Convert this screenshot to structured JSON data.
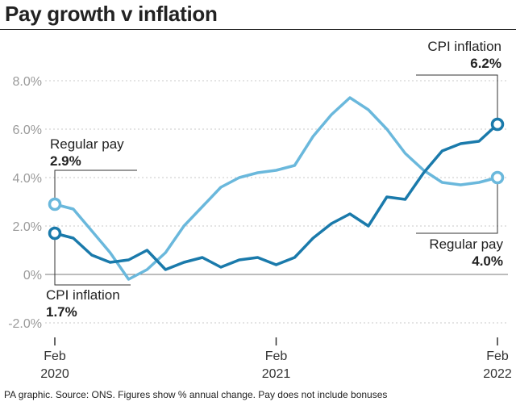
{
  "title": "Pay growth v inflation",
  "source": "PA graphic. Source: ONS. Figures show % annual change. Pay does not include bonuses",
  "chart_data": {
    "type": "line",
    "ylim": [
      -2,
      8
    ],
    "yticks": [
      -2,
      0,
      2,
      4,
      6,
      8
    ],
    "ytick_labels": [
      "-2.0%",
      "0%",
      "2.0%",
      "4.0%",
      "6.0%",
      "8.0%"
    ],
    "x_months": 24,
    "xticks": [
      {
        "index": 0,
        "line1": "Feb",
        "line2": "2020"
      },
      {
        "index": 12,
        "line1": "Feb",
        "line2": "2021"
      },
      {
        "index": 24,
        "line1": "Feb",
        "line2": "2022"
      }
    ],
    "series": [
      {
        "name": "CPI inflation",
        "color": "#1a7aab",
        "values": [
          1.7,
          1.5,
          0.8,
          0.5,
          0.6,
          1.0,
          0.2,
          0.5,
          0.7,
          0.3,
          0.6,
          0.7,
          0.4,
          0.7,
          1.5,
          2.1,
          2.5,
          2.0,
          3.2,
          3.1,
          4.2,
          5.1,
          5.4,
          5.5,
          6.2
        ]
      },
      {
        "name": "Regular pay",
        "color": "#6ab8dc",
        "values": [
          2.9,
          2.7,
          1.8,
          0.9,
          -0.2,
          0.2,
          0.9,
          2.0,
          2.8,
          3.6,
          4.0,
          4.2,
          4.3,
          4.5,
          5.7,
          6.6,
          7.3,
          6.8,
          6.0,
          5.0,
          4.3,
          3.8,
          3.7,
          3.8,
          4.0
        ]
      }
    ],
    "annotations": {
      "cpi_start": {
        "label": "CPI inflation",
        "value": "1.7%"
      },
      "pay_start": {
        "label": "Regular pay",
        "value": "2.9%"
      },
      "cpi_end": {
        "label": "CPI inflation",
        "value": "6.2%"
      },
      "pay_end": {
        "label": "Regular pay",
        "value": "4.0%"
      }
    }
  }
}
